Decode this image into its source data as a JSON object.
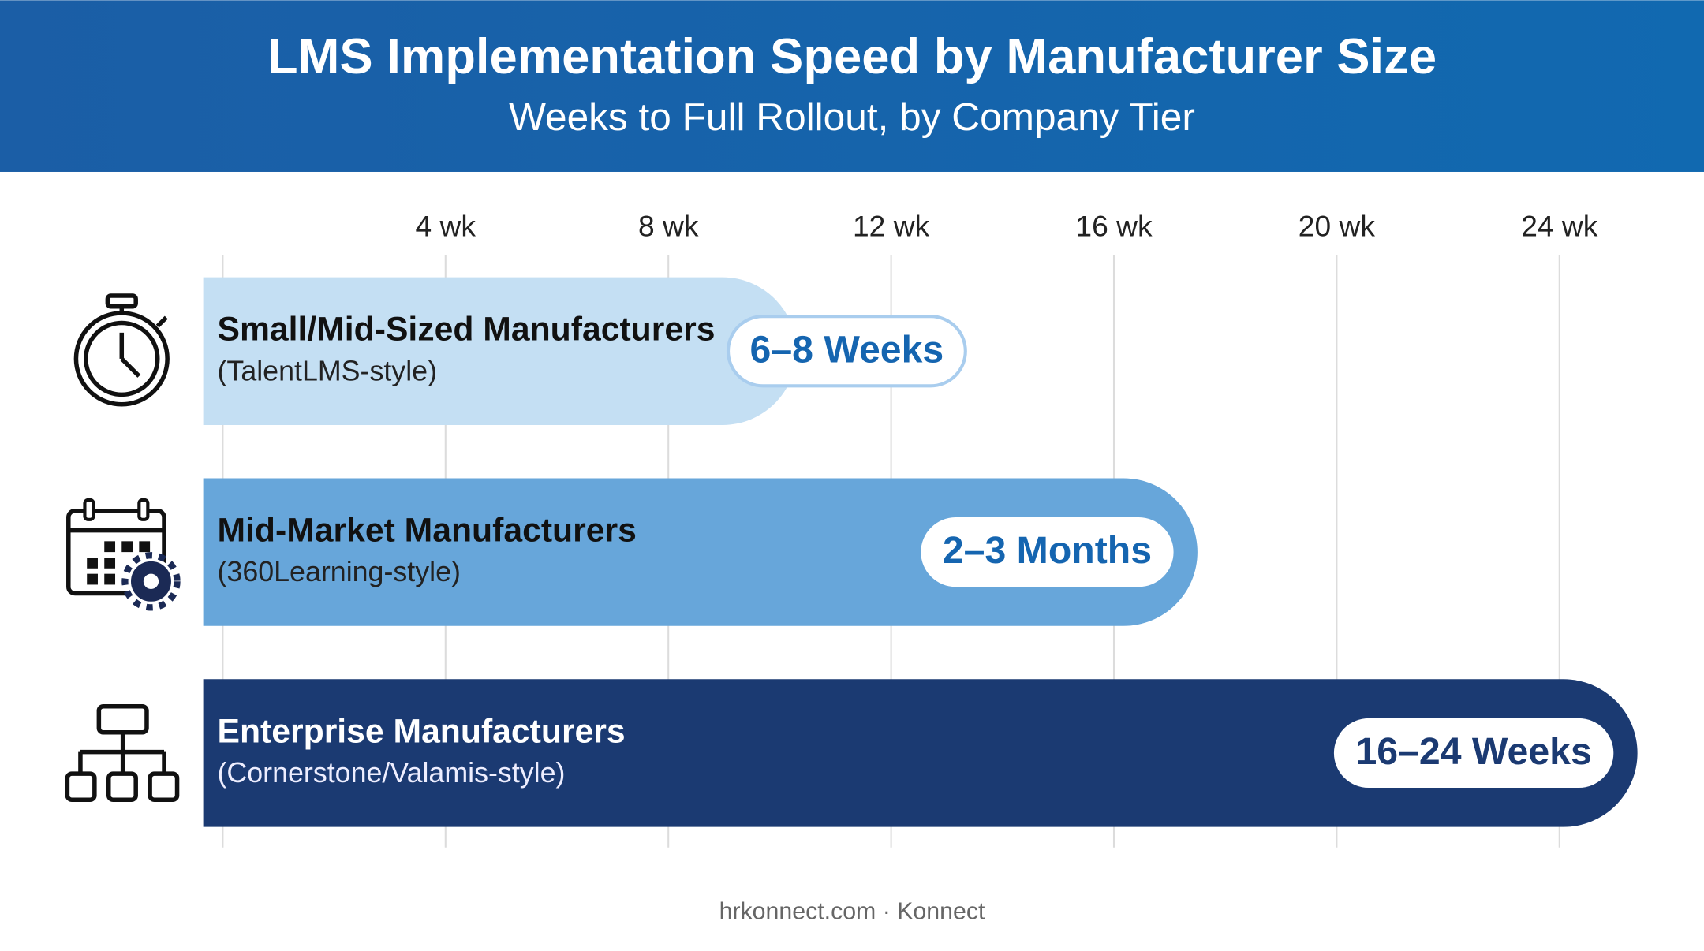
{
  "chart_data": {
    "type": "bar",
    "orientation": "horizontal",
    "title": "LMS Implementation Speed by Manufacturer Size",
    "subtitle": "Weeks to Full Rollout, by Company Tier",
    "categories": [
      "Small/Mid-Sized Manufacturers",
      "Mid-Market Manufacturers",
      "Enterprise Manufacturers"
    ],
    "category_notes": [
      "(TalentLMS-style)",
      "(360Learning-style)",
      "(Cornerstone/Valamis-style)"
    ],
    "badges": [
      "6–8 Weeks",
      "2–3 Months",
      "16–24 Weeks"
    ],
    "values": [
      10.3,
      17.5,
      25.4
    ],
    "colors": [
      "#c4dff3",
      "#67a6da",
      "#1b3a72"
    ],
    "xlim": [
      0,
      26
    ],
    "xticks": [
      {
        "value": 4,
        "label": "4 wk"
      },
      {
        "value": 8,
        "label": "8 wk"
      },
      {
        "value": 12,
        "label": "12 wk"
      },
      {
        "value": 16,
        "label": "16 wk"
      },
      {
        "value": 20,
        "label": "20 wk"
      },
      {
        "value": 24,
        "label": "24 wk"
      }
    ],
    "grid": true,
    "source": "hrkonnect.com · Konnect"
  }
}
